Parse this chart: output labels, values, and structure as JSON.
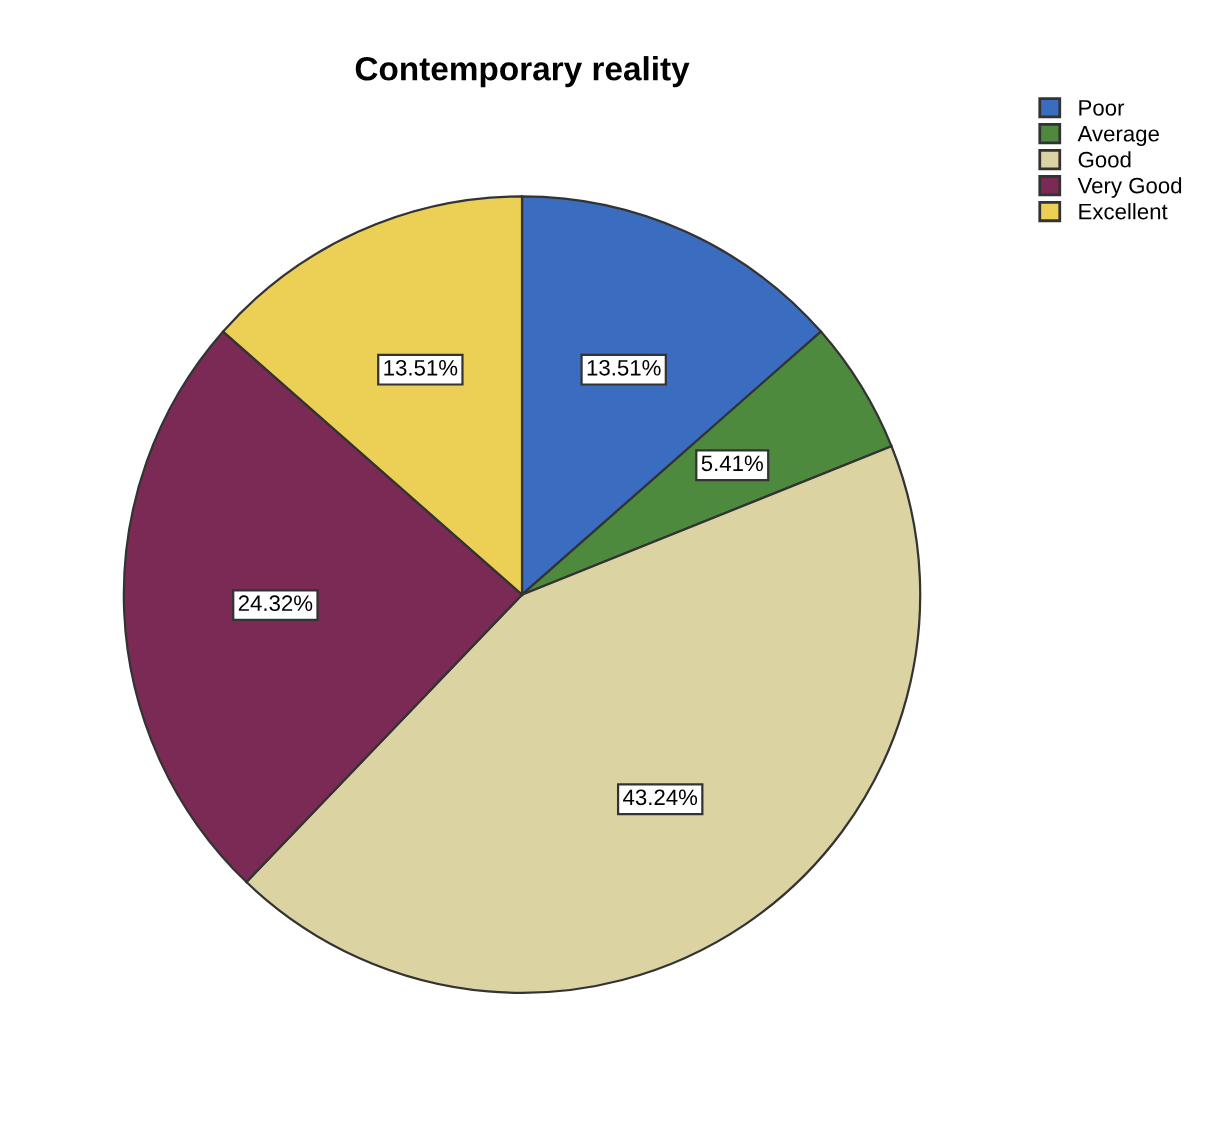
{
  "chart_data": {
    "type": "pie",
    "title": "Contemporary reality",
    "categories": [
      "Poor",
      "Average",
      "Good",
      "Very Good",
      "Excellent"
    ],
    "values": [
      13.51,
      5.41,
      43.24,
      24.32,
      13.51
    ],
    "colors": [
      "#3a6cc0",
      "#4e8a3e",
      "#dcd3a2",
      "#7b2a55",
      "#ecd055"
    ],
    "value_labels": [
      "13.51%",
      "5.41%",
      "43.24%",
      "24.32%",
      "13.51%"
    ],
    "legend": "top right"
  }
}
